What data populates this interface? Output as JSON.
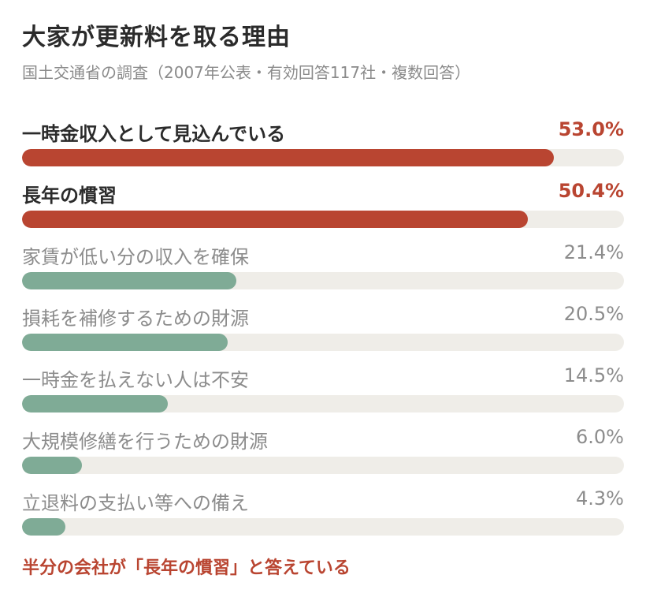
{
  "header": {
    "title": "大家が更新料を取る理由",
    "subtitle": "国土交通省の調査（2007年公表・有効回答117社・複数回答）"
  },
  "colors": {
    "highlight": "#b94531",
    "normal_bar": "#7fab96",
    "normal_text": "#8c8c8c",
    "track": "#efede8"
  },
  "chart_data": {
    "type": "bar",
    "orientation": "horizontal",
    "categories": [
      "一時金収入として見込んでいる",
      "長年の慣習",
      "家賃が低い分の収入を確保",
      "損耗を補修するための財源",
      "一時金を払えない人は不安",
      "大規模修繕を行うための財源",
      "立退料の支払い等への備え"
    ],
    "values": [
      53.0,
      50.4,
      21.4,
      20.5,
      14.5,
      6.0,
      4.3
    ],
    "value_labels": [
      "53.0%",
      "50.4%",
      "21.4%",
      "20.5%",
      "14.5%",
      "6.0%",
      "4.3%"
    ],
    "highlighted": [
      true,
      true,
      false,
      false,
      false,
      false,
      false
    ],
    "xlim": [
      0,
      60
    ],
    "unit": "%",
    "title": "大家が更新料を取る理由",
    "subtitle": "国土交通省の調査（2007年公表・有効回答117社・複数回答）"
  },
  "footnote": "半分の会社が「長年の慣習」と答えている"
}
